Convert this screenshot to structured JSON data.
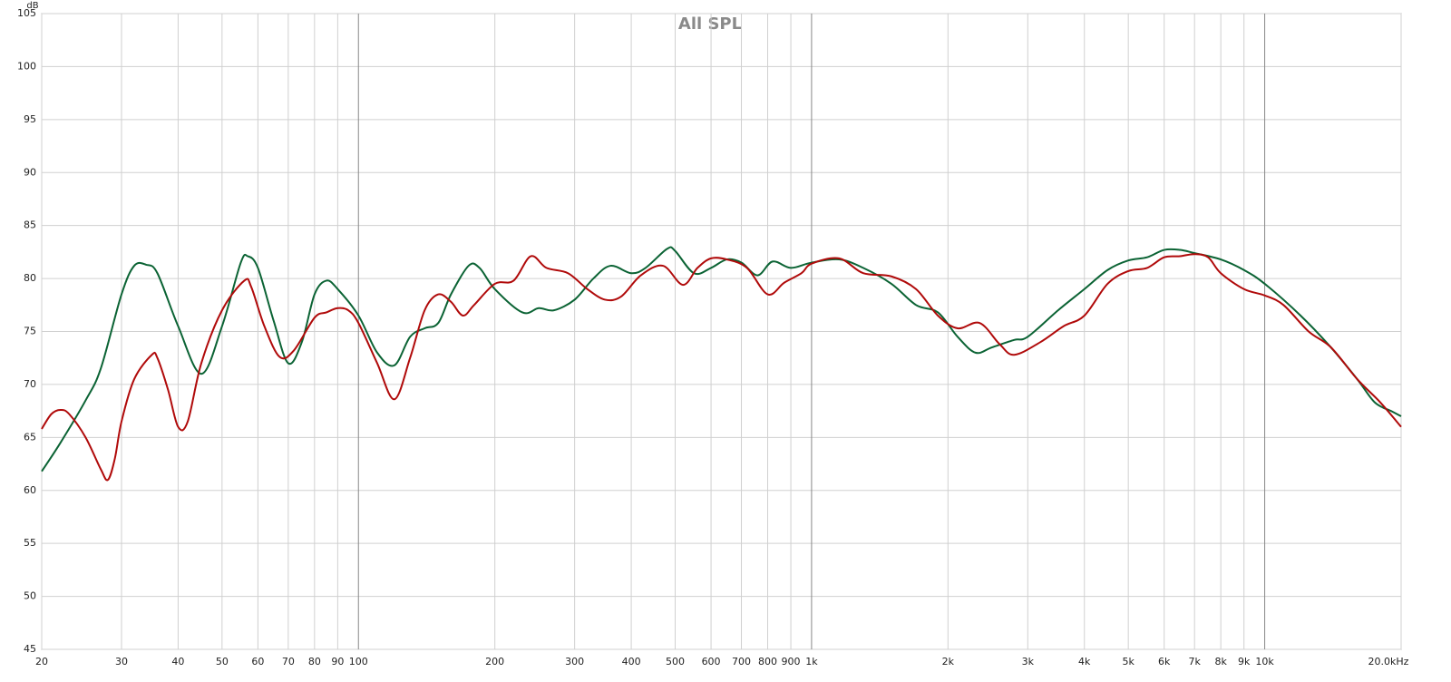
{
  "chart_data": {
    "type": "line",
    "title": "All SPL",
    "y_label": "dB",
    "log_x": true,
    "grid": true,
    "xlim": [
      20,
      20000
    ],
    "ylim": [
      45,
      105
    ],
    "yticks": [
      45,
      50,
      55,
      60,
      65,
      70,
      75,
      80,
      85,
      90,
      95,
      100,
      105
    ],
    "xticks": [
      20,
      30,
      40,
      50,
      60,
      70,
      80,
      90,
      100,
      200,
      300,
      400,
      500,
      600,
      700,
      800,
      900,
      {
        "value": 1000,
        "label": "1k"
      },
      {
        "value": 2000,
        "label": "2k"
      },
      {
        "value": 3000,
        "label": "3k"
      },
      {
        "value": 4000,
        "label": "4k"
      },
      {
        "value": 5000,
        "label": "5k"
      },
      {
        "value": 6000,
        "label": "6k"
      },
      {
        "value": 7000,
        "label": "7k"
      },
      {
        "value": 8000,
        "label": "8k"
      },
      {
        "value": 9000,
        "label": "9k"
      },
      {
        "value": 10000,
        "label": "10k"
      },
      {
        "value": 20000,
        "label": "20.0kHz"
      }
    ],
    "series": [
      {
        "color": "#0b6334",
        "x": [
          20,
          22,
          25,
          27,
          30,
          32,
          34,
          36,
          40,
          45,
          50,
          55,
          57,
          60,
          65,
          70,
          75,
          80,
          85,
          90,
          100,
          110,
          120,
          130,
          140,
          150,
          160,
          175,
          185,
          200,
          230,
          250,
          270,
          300,
          330,
          360,
          400,
          430,
          480,
          500,
          550,
          600,
          650,
          700,
          760,
          820,
          900,
          1000,
          1150,
          1300,
          1500,
          1700,
          1900,
          2100,
          2300,
          2500,
          2800,
          3000,
          3500,
          4000,
          4500,
          5000,
          5500,
          6000,
          6500,
          7000,
          8000,
          9000,
          10000,
          12000,
          14000,
          16000,
          17500,
          19000,
          20000
        ],
        "values": [
          61.8,
          64.5,
          68.5,
          71.5,
          78.5,
          81.2,
          81.3,
          80.5,
          75.5,
          71,
          75.5,
          81.5,
          82.1,
          81,
          76,
          72,
          74,
          78.5,
          79.8,
          79,
          76.5,
          73,
          71.8,
          74.5,
          75.3,
          75.8,
          78.5,
          81.2,
          81,
          79,
          76.8,
          77.2,
          77,
          78,
          80,
          81.2,
          80.5,
          81,
          82.8,
          82.6,
          80.5,
          81,
          81.8,
          81.5,
          80.3,
          81.6,
          81,
          81.5,
          81.8,
          81,
          79.5,
          77.5,
          76.8,
          74.5,
          73,
          73.5,
          74.2,
          74.5,
          77,
          79,
          80.8,
          81.7,
          82,
          82.7,
          82.7,
          82.4,
          81.8,
          80.8,
          79.5,
          76.5,
          73.5,
          70.5,
          68.3,
          67.5,
          67
        ]
      },
      {
        "color": "#b00a0a",
        "x": [
          20,
          21,
          22,
          23,
          25,
          27,
          28,
          29,
          30,
          32,
          35,
          36,
          38,
          40,
          42,
          45,
          50,
          56,
          58,
          62,
          67,
          72,
          80,
          85,
          90,
          95,
          100,
          110,
          120,
          130,
          140,
          150,
          160,
          170,
          180,
          200,
          220,
          240,
          260,
          290,
          320,
          350,
          380,
          420,
          470,
          520,
          560,
          600,
          650,
          720,
          800,
          870,
          950,
          1000,
          1150,
          1300,
          1500,
          1700,
          1900,
          2100,
          2350,
          2600,
          2800,
          3200,
          3600,
          4000,
          4500,
          5000,
          5500,
          6000,
          6500,
          7000,
          7500,
          8000,
          9000,
          10000,
          11000,
          12500,
          14000,
          16000,
          18000,
          20000
        ],
        "values": [
          65.8,
          67.2,
          67.6,
          67.2,
          65,
          62,
          61,
          63,
          66.5,
          70.5,
          72.8,
          72.5,
          69.5,
          66,
          66.5,
          72,
          77,
          79.8,
          79.2,
          75.5,
          72.6,
          73.2,
          76.3,
          76.8,
          77.2,
          77,
          75.8,
          72,
          68.6,
          72.5,
          77,
          78.5,
          77.8,
          76.5,
          77.5,
          79.5,
          79.8,
          82.1,
          81,
          80.5,
          79,
          78,
          78.3,
          80.3,
          81.2,
          79.4,
          81,
          81.9,
          81.8,
          81,
          78.5,
          79.6,
          80.5,
          81.4,
          81.9,
          80.5,
          80.2,
          79,
          76.5,
          75.3,
          75.8,
          73.8,
          72.8,
          74,
          75.5,
          76.5,
          79.5,
          80.7,
          81,
          82,
          82.1,
          82.3,
          82,
          80.5,
          79,
          78.4,
          77.5,
          75,
          73.5,
          70.5,
          68.3,
          66
        ]
      }
    ]
  }
}
